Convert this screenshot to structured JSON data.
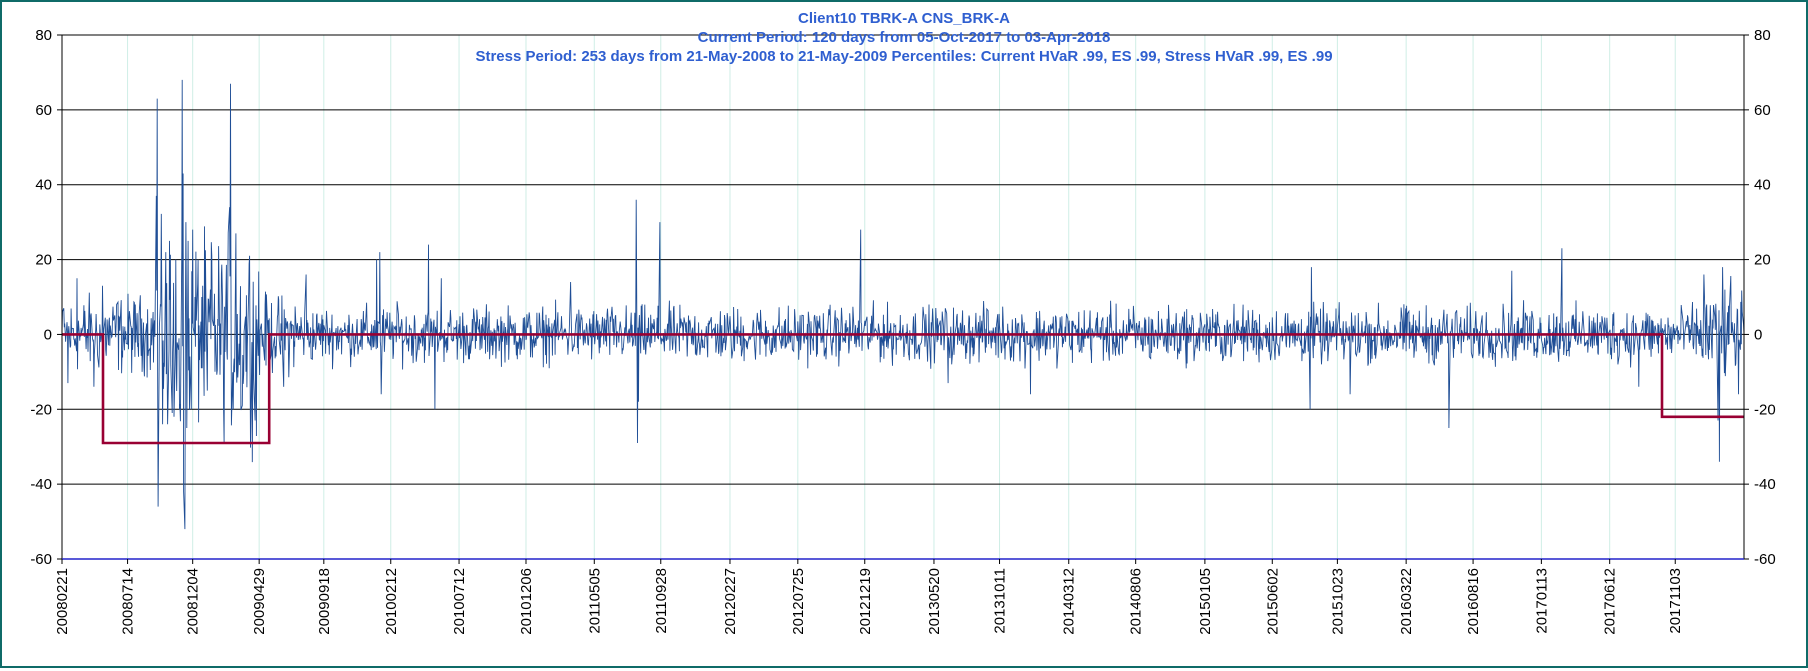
{
  "chart_data": {
    "type": "line",
    "title": [
      "Client10 TBRK-A CNS_BRK-A",
      "Current Period: 120 days from 05-Oct-2017 to 03-Apr-2018",
      "Stress Period: 253 days from 21-May-2008 to 21-May-2009  Percentiles:  Current HVaR .99,   ES .99,    Stress HVaR .99,   ES .99"
    ],
    "xlabel": "",
    "ylabel": "",
    "ylim": [
      -60,
      80
    ],
    "yticks": [
      -60,
      -40,
      -20,
      0,
      20,
      40,
      60,
      80
    ],
    "secondary_y_axis": true,
    "grid": {
      "horizontal": true,
      "vertical": true
    },
    "x_date_range": [
      "2008-02-21",
      "2018-04-03"
    ],
    "x_tick_labels": [
      "20080221",
      "20080714",
      "20081204",
      "20090429",
      "20090918",
      "20100212",
      "20100712",
      "20101206",
      "20110505",
      "20110928",
      "20120227",
      "20120725",
      "20121219",
      "20130520",
      "20131011",
      "20140312",
      "20140806",
      "20150105",
      "20150602",
      "20151023",
      "20160322",
      "20160816",
      "20170113",
      "20170612",
      "20171103"
    ],
    "series": [
      {
        "kind": "daily_pnl",
        "color": "#1f4e96",
        "peaks": [
          {
            "date": "2008-02-25",
            "value": 7
          },
          {
            "date": "2008-03-05",
            "value": -13
          },
          {
            "date": "2008-03-25",
            "value": 15
          },
          {
            "date": "2008-05-01",
            "value": -14
          },
          {
            "date": "2008-05-20",
            "value": 13
          },
          {
            "date": "2008-06-20",
            "value": 8
          },
          {
            "date": "2008-07-30",
            "value": -6
          },
          {
            "date": "2008-09-15",
            "value": 37
          },
          {
            "date": "2008-09-17",
            "value": 63
          },
          {
            "date": "2008-09-19",
            "value": -46
          },
          {
            "date": "2008-09-29",
            "value": -24
          },
          {
            "date": "2008-10-06",
            "value": 22
          },
          {
            "date": "2008-10-10",
            "value": -24
          },
          {
            "date": "2008-10-14",
            "value": 25
          },
          {
            "date": "2008-10-20",
            "value": -21
          },
          {
            "date": "2008-10-24",
            "value": -22
          },
          {
            "date": "2008-10-28",
            "value": 20
          },
          {
            "date": "2008-11-05",
            "value": -20
          },
          {
            "date": "2008-11-11",
            "value": 68
          },
          {
            "date": "2008-11-13",
            "value": 43
          },
          {
            "date": "2008-11-14",
            "value": -42
          },
          {
            "date": "2008-11-17",
            "value": -52
          },
          {
            "date": "2008-11-19",
            "value": 30
          },
          {
            "date": "2008-11-21",
            "value": -25
          },
          {
            "date": "2008-11-24",
            "value": 25
          },
          {
            "date": "2008-12-01",
            "value": -20
          },
          {
            "date": "2008-12-04",
            "value": 28
          },
          {
            "date": "2008-12-16",
            "value": 20
          },
          {
            "date": "2009-01-05",
            "value": -15
          },
          {
            "date": "2009-01-15",
            "value": 21
          },
          {
            "date": "2009-02-10",
            "value": -20
          },
          {
            "date": "2009-02-23",
            "value": 34
          },
          {
            "date": "2009-02-25",
            "value": 67
          },
          {
            "date": "2009-03-03",
            "value": -20
          },
          {
            "date": "2009-03-09",
            "value": 27
          },
          {
            "date": "2009-03-23",
            "value": -19
          },
          {
            "date": "2009-04-08",
            "value": 21
          },
          {
            "date": "2009-04-20",
            "value": -23
          },
          {
            "date": "2009-05-12",
            "value": 8
          },
          {
            "date": "2009-06-22",
            "value": -14
          },
          {
            "date": "2009-08-10",
            "value": 16
          },
          {
            "date": "2010-01-12",
            "value": 20
          },
          {
            "date": "2010-01-19",
            "value": 22
          },
          {
            "date": "2010-01-22",
            "value": -16
          },
          {
            "date": "2010-05-06",
            "value": 24
          },
          {
            "date": "2010-05-20",
            "value": -20
          },
          {
            "date": "2010-06-03",
            "value": 15
          },
          {
            "date": "2011-03-14",
            "value": 14
          },
          {
            "date": "2011-08-05",
            "value": 36
          },
          {
            "date": "2011-08-08",
            "value": -29
          },
          {
            "date": "2011-08-10",
            "value": -18
          },
          {
            "date": "2011-09-26",
            "value": 30
          },
          {
            "date": "2012-12-10",
            "value": 28
          },
          {
            "date": "2013-06-20",
            "value": -13
          },
          {
            "date": "2013-12-18",
            "value": -16
          },
          {
            "date": "2015-08-24",
            "value": -20
          },
          {
            "date": "2015-08-27",
            "value": 18
          },
          {
            "date": "2015-11-20",
            "value": -16
          },
          {
            "date": "2016-06-24",
            "value": -25
          },
          {
            "date": "2016-11-09",
            "value": 17
          },
          {
            "date": "2017-02-27",
            "value": 23
          },
          {
            "date": "2017-08-15",
            "value": -14
          },
          {
            "date": "2018-01-05",
            "value": 16
          },
          {
            "date": "2018-02-05",
            "value": -23
          },
          {
            "date": "2018-02-08",
            "value": -34
          },
          {
            "date": "2018-02-15",
            "value": 18
          },
          {
            "date": "2018-03-22",
            "value": -16
          }
        ],
        "typical_range": [
          -8,
          8
        ]
      },
      {
        "kind": "step",
        "color": "#990033",
        "points": [
          {
            "date": "2008-02-21",
            "value": 0
          },
          {
            "date": "2008-05-21",
            "value": 0
          },
          {
            "date": "2008-05-21",
            "value": -29
          },
          {
            "date": "2009-05-21",
            "value": -29
          },
          {
            "date": "2009-05-21",
            "value": 0
          },
          {
            "date": "2017-10-05",
            "value": 0
          },
          {
            "date": "2017-10-05",
            "value": -22
          },
          {
            "date": "2018-04-03",
            "value": -22
          }
        ]
      }
    ]
  }
}
